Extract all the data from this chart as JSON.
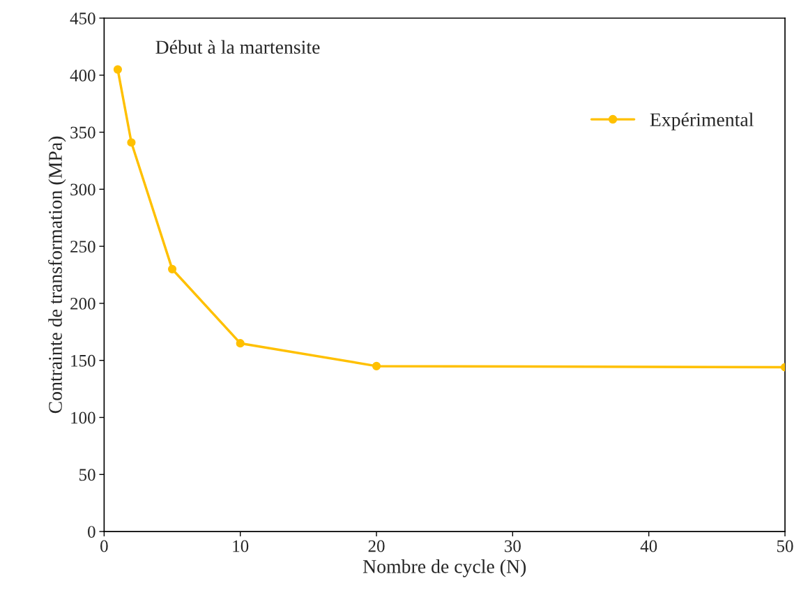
{
  "chart_data": {
    "type": "line",
    "xlabel": "Nombre de cycle (N)",
    "ylabel": "Contrainte de transformation (MPa)",
    "annotations": [
      "Début à la martensite"
    ],
    "series": [
      {
        "name": "Expérimental",
        "color": "#ffc000",
        "x": [
          1,
          2,
          5,
          10,
          20,
          50
        ],
        "values": [
          405,
          341,
          230,
          165,
          145,
          144
        ]
      }
    ],
    "xlim": [
      0,
      50
    ],
    "xticks": [
      0,
      10,
      20,
      30,
      40,
      50
    ],
    "ylim": [
      0,
      450
    ],
    "yticks": [
      0,
      50,
      100,
      150,
      200,
      250,
      300,
      350,
      400,
      450
    ],
    "marker": "circle",
    "line_style": "solid",
    "legend": "top right",
    "grid": false
  }
}
